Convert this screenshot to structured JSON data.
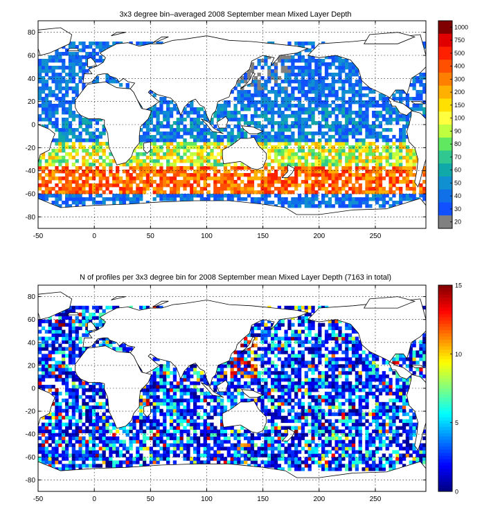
{
  "maps": [
    {
      "title": "3x3 degree bin–averaged 2008 September mean Mixed Layer Depth",
      "x_ticks": [
        "-50",
        "0",
        "50",
        "100",
        "150",
        "200",
        "250"
      ],
      "x_tick_values": [
        -50,
        0,
        50,
        100,
        150,
        200,
        250
      ],
      "y_ticks": [
        "80",
        "60",
        "40",
        "20",
        "0",
        "-20",
        "-40",
        "-60",
        "-80"
      ],
      "y_tick_values": [
        80,
        60,
        40,
        20,
        0,
        -20,
        -40,
        -60,
        -80
      ],
      "xlim": [
        -50,
        295
      ],
      "ylim": [
        -90,
        90
      ],
      "colorbar_type": "discrete",
      "colorbar_labels": [
        "1000",
        "750",
        "500",
        "400",
        "300",
        "200",
        "150",
        "100",
        "90",
        "80",
        "70",
        "60",
        "50",
        "40",
        "30",
        "20"
      ],
      "colorbar_colors": [
        "#800000",
        "#e00000",
        "#ff2000",
        "#ff5000",
        "#ff8000",
        "#ffb000",
        "#ffe000",
        "#ffff40",
        "#c0ff40",
        "#60e860",
        "#30c890",
        "#10a8a8",
        "#1090d0",
        "#1070e8",
        "#1050ff",
        "#808080"
      ],
      "field_type": "mld"
    },
    {
      "title": "N of profiles per 3x3 degree bin for 2008 September mean Mixed Layer Depth  (7163 in total)",
      "x_ticks": [
        "-50",
        "0",
        "50",
        "100",
        "150",
        "200",
        "250"
      ],
      "x_tick_values": [
        -50,
        0,
        50,
        100,
        150,
        200,
        250
      ],
      "y_ticks": [
        "80",
        "60",
        "40",
        "20",
        "0",
        "-20",
        "-40",
        "-60",
        "-80"
      ],
      "y_tick_values": [
        80,
        60,
        40,
        20,
        0,
        -20,
        -40,
        -60,
        -80
      ],
      "xlim": [
        -50,
        295
      ],
      "ylim": [
        -90,
        90
      ],
      "colorbar_type": "continuous",
      "colorbar_labels": [
        "15",
        "10",
        "5",
        "0"
      ],
      "colorbar_tick_values": [
        15,
        10,
        5,
        0
      ],
      "colorbar_range": [
        0,
        15
      ],
      "colormap": "jet",
      "field_type": "count"
    }
  ],
  "colors": {
    "land": "#ffffff",
    "coast": "#000000",
    "grid": "#000000",
    "missing": "#808080"
  }
}
